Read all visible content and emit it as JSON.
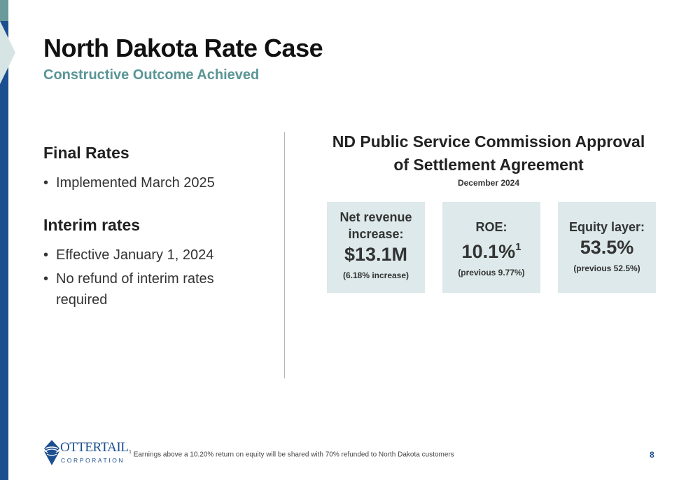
{
  "header": {
    "title": "North Dakota Rate Case",
    "subtitle": "Constructive Outcome Achieved"
  },
  "left": {
    "final_rates": {
      "heading": "Final Rates",
      "bullets": [
        "Implemented March 2025"
      ]
    },
    "interim_rates": {
      "heading": "Interim rates",
      "bullets": [
        "Effective January 1, 2024",
        "No refund of interim rates required"
      ]
    }
  },
  "right": {
    "title_line1": "ND Public Service Commission Approval",
    "title_line2": "of Settlement Agreement",
    "date": "December 2024",
    "cards": [
      {
        "label_line1": "Net revenue",
        "label_line2": "increase:",
        "value": "$13.1M",
        "note": "(6.18% increase)"
      },
      {
        "label": "ROE:",
        "value": "10.1%",
        "value_sup": "1",
        "note": "(previous 9.77%)"
      },
      {
        "label": "Equity layer:",
        "value": "53.5%",
        "note": "(previous 52.5%)"
      }
    ]
  },
  "footer": {
    "logo_name": "OTTERTAIL",
    "logo_corp": "CORPORATION",
    "footnote_marker": "1",
    "footnote": "Earnings above a 10.20% return on equity will be shared with 70% refunded to North Dakota customers",
    "page_number": "8"
  },
  "colors": {
    "brand_blue": "#1b4f8f",
    "teal": "#5a9595",
    "card_bg": "#dde9ea"
  }
}
